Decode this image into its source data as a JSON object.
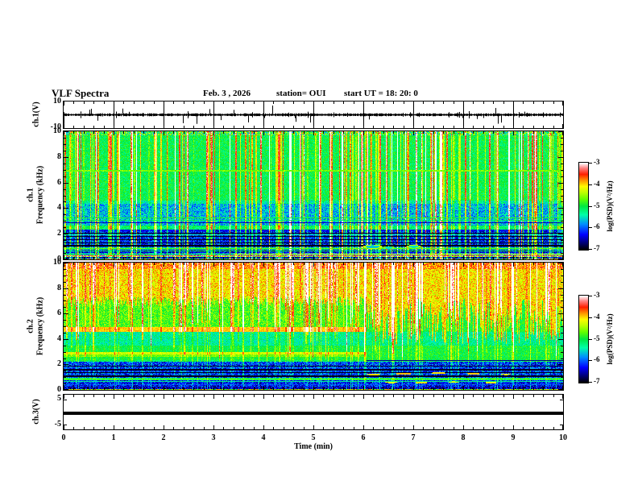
{
  "header": {
    "title": "VLF Spectra",
    "date": "Feb. 3 , 2026",
    "station": "station= OUI",
    "start_ut": "start UT =  18: 20: 0"
  },
  "xaxis": {
    "label": "Time (min)",
    "ticks": [
      "0",
      "1",
      "2",
      "3",
      "4",
      "5",
      "6",
      "7",
      "8",
      "9",
      "10"
    ]
  },
  "colorbar": {
    "label": "log(PSD)(V²/Hz)",
    "ticks": [
      "-3",
      "-4",
      "-5",
      "-6",
      "-7"
    ]
  },
  "panels": {
    "ch1_wave": {
      "ylabel": "ch.1(V)",
      "yticks": [
        "10",
        "-10"
      ]
    },
    "ch1_spec": {
      "ylabel1": "ch.1",
      "ylabel2": "Frequency (kHz)",
      "yticks": [
        "10",
        "8",
        "6",
        "4",
        "2",
        "0"
      ]
    },
    "ch2_spec": {
      "ylabel1": "ch.2",
      "ylabel2": "Frequency (kHz)",
      "yticks": [
        "10",
        "8",
        "6",
        "4",
        "2",
        "0"
      ]
    },
    "ch3_wave": {
      "ylabel": "ch.3(V)",
      "yticks": [
        "5",
        "-5"
      ]
    }
  },
  "chart_data": [
    {
      "type": "line",
      "panel": "ch1_waveform",
      "ylabel": "ch.1(V)",
      "ylim": [
        -10,
        10
      ],
      "xlim": [
        0,
        10
      ],
      "grid": "vertical-minute-lines",
      "description": "broadband noise trace around 0 V with impulsive spikes",
      "noise_v": 0.8,
      "spike_count": 28,
      "spike_vmax": 7
    },
    {
      "type": "heatmap",
      "panel": "ch1_spectrogram",
      "ylabel": "ch.1 Frequency (kHz)",
      "xlim": [
        0,
        10
      ],
      "flim": [
        0,
        10
      ],
      "vlim": [
        -7,
        -3
      ],
      "colorbar_label": "log(PSD)(V²/Hz)",
      "bands": [
        {
          "f": [
            9.72,
            10.01
          ],
          "v": -5.0,
          "n": 0.85
        },
        {
          "f": [
            4.6,
            9.72
          ],
          "v": -5.05,
          "n": 0.3
        },
        {
          "f": [
            4.35,
            4.6
          ],
          "v": -5.35,
          "n": 0.35
        },
        {
          "f": [
            2.68,
            4.35
          ],
          "v": -5.7,
          "n": 0.45
        },
        {
          "f": [
            2.34,
            2.68
          ],
          "v": -5.15,
          "n": 0.28
        },
        {
          "f": [
            2.24,
            2.34
          ],
          "v": -6.35,
          "n": 0.25
        },
        {
          "f": [
            0.95,
            2.24
          ],
          "v": -6.25,
          "n": 0.5
        },
        {
          "f": [
            0.78,
            0.95
          ],
          "v": -5.3,
          "n": 0.45
        },
        {
          "f": [
            0.52,
            0.78
          ],
          "v": -6.45,
          "n": 0.4
        },
        {
          "f": [
            0.36,
            0.52
          ],
          "v": -5.9,
          "n": 0.5
        },
        {
          "f": [
            0.2,
            0.36
          ],
          "v": -4.8,
          "n": 1.0
        },
        {
          "f": [
            0.1,
            0.2
          ],
          "v": -6.6,
          "n": 0.35
        },
        {
          "f": [
            0.0,
            0.1
          ],
          "v": -4.8,
          "n": 1.0
        }
      ],
      "lines": [
        {
          "f": 6.95,
          "hw": 0.06,
          "v": -4.6,
          "t": [
            0,
            10
          ],
          "n": 0.25
        },
        {
          "f": 3.27,
          "hw": 0.035,
          "v": -4.95,
          "t": [
            0,
            10
          ],
          "n": 0.2
        },
        {
          "f": 3.07,
          "hw": 0.03,
          "v": -5.1,
          "t": [
            0,
            10
          ],
          "n": 0.2
        },
        {
          "f": 2.9,
          "hw": 0.025,
          "v": -6.5,
          "t": [
            0,
            10
          ],
          "n": 0.15
        },
        {
          "f": 2.05,
          "hw": 0.035,
          "v": -6.95,
          "t": [
            0,
            10
          ],
          "n": 0.05
        },
        {
          "f": 1.95,
          "hw": 0.02,
          "v": -5.35,
          "t": [
            0,
            10
          ],
          "n": 0.15
        },
        {
          "f": 1.8,
          "hw": 0.035,
          "v": -6.95,
          "t": [
            0,
            10
          ],
          "n": 0.05
        },
        {
          "f": 1.55,
          "hw": 0.035,
          "v": -6.9,
          "t": [
            0,
            10
          ],
          "n": 0.05
        },
        {
          "f": 1.42,
          "hw": 0.02,
          "v": -5.7,
          "t": [
            0,
            10
          ],
          "n": 0.2
        },
        {
          "f": 1.3,
          "hw": 0.035,
          "v": -6.9,
          "t": [
            0,
            10
          ],
          "n": 0.05
        },
        {
          "f": 1.1,
          "hw": 0.04,
          "v": -6.95,
          "t": [
            0,
            10
          ],
          "n": 0.05
        },
        {
          "f": 0.87,
          "hw": 0.045,
          "v": -4.75,
          "t": [
            0,
            10
          ],
          "n": 0.25
        },
        {
          "f": 0.7,
          "hw": 0.035,
          "v": -5.1,
          "t": [
            0,
            10
          ],
          "n": 0.3
        },
        {
          "f": 0.44,
          "hw": 0.05,
          "v": -4.2,
          "t": [
            3.4,
            10
          ],
          "n": 0.2
        },
        {
          "f": 0.44,
          "hw": 0.04,
          "v": -5.0,
          "t": [
            0,
            3.4
          ],
          "n": 0.3
        },
        {
          "f": 0.29,
          "hw": 0.035,
          "v": -3.5,
          "t": [
            0,
            10
          ],
          "n": 0.5
        }
      ],
      "streaks": {
        "count": 160,
        "wmax": 2,
        "addMin": 0.3,
        "addMax": 1.7,
        "fBotMin": 0,
        "fBotMax": 0,
        "belowFactor": 1,
        "redCount": 22,
        "redAdd": 2.4
      },
      "blobs": [
        {
          "t": 6.18,
          "f": 1.02,
          "rx": 0.2,
          "ry": 0.16,
          "v": -5.6,
          "rim": -4.35
        },
        {
          "t": 6.5,
          "f": 0.95,
          "rx": 0.12,
          "ry": 0.12,
          "v": -5.5,
          "rim": -4.5
        },
        {
          "t": 7.0,
          "f": 1.03,
          "rx": 0.15,
          "ry": 0.13,
          "v": -5.5,
          "rim": -4.4
        }
      ]
    },
    {
      "type": "heatmap",
      "panel": "ch2_spectrogram",
      "ylabel": "ch.2 Frequency (kHz)",
      "xlim": [
        0,
        10
      ],
      "flim": [
        0,
        10
      ],
      "vlim": [
        -7,
        -3
      ],
      "colorbar_label": "log(PSD)(V²/Hz)",
      "tSplit": 6.05,
      "ragged": {
        "zoneMin": 2.6,
        "leftBase": 7.0,
        "leftVar": 0.8,
        "rightBase": 5.4,
        "rightVar": 3.6,
        "min": 3.0,
        "max": 9.2,
        "topV": -4.05,
        "topN": 0.4,
        "topBoost": 0.3,
        "belowV": -5.0,
        "belowN": 0.3
      },
      "leftBands": [
        {
          "f": [
            4.6,
            4.95
          ],
          "v": -3.95,
          "n": 0.15
        },
        {
          "f": [
            4.95,
            10.01
          ],
          "v": -4.75,
          "n": 0.35
        },
        {
          "f": [
            3.5,
            4.6
          ],
          "v": -5.35,
          "n": 0.3
        },
        {
          "f": [
            3.0,
            3.5
          ],
          "v": -5.05,
          "n": 0.25
        },
        {
          "f": [
            2.82,
            3.0
          ],
          "v": -4.3,
          "n": 0.2
        },
        {
          "f": [
            2.6,
            2.82
          ],
          "v": -4.65,
          "n": 0.25
        }
      ],
      "rightBands": [
        {
          "f": [
            3.5,
            4.6
          ],
          "v": -5.3,
          "n": 0.3
        },
        {
          "f": [
            2.6,
            10.01
          ],
          "v": -5.0,
          "n": 0.3
        }
      ],
      "bands": [
        {
          "f": [
            2.4,
            2.6
          ],
          "v": -5.0,
          "n": 0.25
        },
        {
          "f": [
            2.25,
            2.4
          ],
          "v": -5.1,
          "n": 0.3
        },
        {
          "f": [
            1.0,
            2.25
          ],
          "v": -6.15,
          "n": 0.55
        },
        {
          "f": [
            0.82,
            1.0
          ],
          "v": -5.2,
          "n": 0.45
        },
        {
          "f": [
            0.55,
            0.82
          ],
          "v": -6.3,
          "n": 0.45
        },
        {
          "f": [
            0.3,
            0.55
          ],
          "v": -6.35,
          "n": 0.5
        },
        {
          "f": [
            0.12,
            0.3
          ],
          "v": -6.55,
          "n": 0.45
        },
        {
          "f": [
            0.0,
            0.12
          ],
          "v": -4.7,
          "n": 1.1
        }
      ],
      "lines": [
        {
          "f": 2.33,
          "hw": 0.03,
          "v": -6.6,
          "t": [
            6.05,
            10
          ],
          "n": 0.1
        },
        {
          "f": 1.12,
          "hw": 0.045,
          "v": -6.95,
          "t": [
            0,
            10
          ],
          "n": 0.05
        },
        {
          "f": 1.38,
          "hw": 0.04,
          "v": -6.95,
          "t": [
            0,
            10
          ],
          "n": 0.05
        },
        {
          "f": 1.62,
          "hw": 0.04,
          "v": -6.9,
          "t": [
            0,
            10
          ],
          "n": 0.05
        },
        {
          "f": 1.88,
          "hw": 0.04,
          "v": -6.9,
          "t": [
            0,
            10
          ],
          "n": 0.05
        },
        {
          "f": 0.9,
          "hw": 0.04,
          "v": -4.75,
          "t": [
            0,
            10
          ],
          "n": 0.2
        },
        {
          "f": 0.68,
          "hw": 0.03,
          "v": -5.3,
          "t": [
            0,
            10
          ],
          "n": 0.2
        },
        {
          "f": 0.45,
          "hw": 0.025,
          "v": -6.0,
          "t": [
            0,
            10
          ],
          "n": 0.3
        },
        {
          "f": 0.05,
          "hw": 0.05,
          "v": -4.4,
          "t": [
            0,
            10
          ],
          "n": 0.8
        }
      ],
      "streaks": {
        "count": 130,
        "wmax": 2,
        "addMin": 0.3,
        "addMax": 1.5,
        "fBotMin": 2.3,
        "fBotMax": 6.8,
        "belowFactor": 0.3,
        "redCount": 30,
        "redAdd": 2.2
      },
      "blobs": [
        {
          "t": 6.2,
          "f": 1.25,
          "rx": 0.14,
          "ry": 0.07,
          "v": -4.0
        },
        {
          "t": 6.55,
          "f": 0.62,
          "rx": 0.12,
          "ry": 0.06,
          "v": -4.1
        },
        {
          "t": 6.8,
          "f": 1.3,
          "rx": 0.16,
          "ry": 0.07,
          "v": -3.9
        },
        {
          "t": 7.15,
          "f": 0.6,
          "rx": 0.13,
          "ry": 0.06,
          "v": -4.0
        },
        {
          "t": 7.5,
          "f": 1.35,
          "rx": 0.15,
          "ry": 0.07,
          "v": -4.0
        },
        {
          "t": 7.8,
          "f": 0.65,
          "rx": 0.1,
          "ry": 0.05,
          "v": -4.2
        },
        {
          "t": 8.2,
          "f": 1.3,
          "rx": 0.14,
          "ry": 0.06,
          "v": -3.95
        },
        {
          "t": 8.55,
          "f": 0.6,
          "rx": 0.12,
          "ry": 0.06,
          "v": -4.05
        },
        {
          "t": 8.85,
          "f": 1.25,
          "rx": 0.1,
          "ry": 0.05,
          "v": -4.1
        }
      ]
    },
    {
      "type": "line",
      "panel": "ch3_waveform",
      "ylabel": "ch.3(V)",
      "ylim": [
        -5,
        5
      ],
      "xlim": [
        0,
        10
      ],
      "description": "flat thick trace at 0 V",
      "value": 0
    }
  ]
}
